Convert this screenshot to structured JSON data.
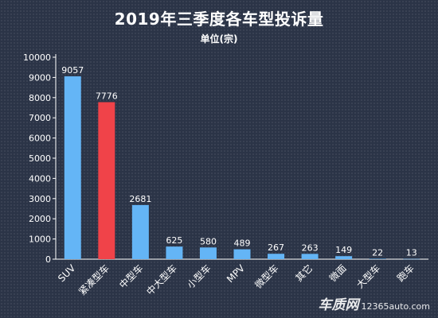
{
  "title": "2019年三季度各车型投诉量",
  "subtitle": "单位(宗)",
  "watermark": {
    "brand": "车质网",
    "url": "12365auto.com"
  },
  "colors": {
    "default_bar": "#64b5f6",
    "highlight_bar": "#f04349",
    "axis": "#ffffff"
  },
  "chart_data": {
    "type": "bar",
    "title": "2019年三季度各车型投诉量",
    "subtitle": "单位(宗)",
    "categories": [
      "SUV",
      "紧凑型车",
      "中型车",
      "中大型车",
      "小型车",
      "MPV",
      "微型车",
      "其它",
      "微面",
      "大型车",
      "跑车"
    ],
    "values": [
      9057,
      7776,
      2681,
      625,
      580,
      489,
      267,
      263,
      149,
      22,
      13
    ],
    "highlight": [
      "紧凑型车"
    ],
    "ylim": [
      0,
      10000
    ],
    "yticks": [
      0,
      1000,
      2000,
      3000,
      4000,
      5000,
      6000,
      7000,
      8000,
      9000,
      10000
    ],
    "grid": false,
    "legend": "none"
  }
}
